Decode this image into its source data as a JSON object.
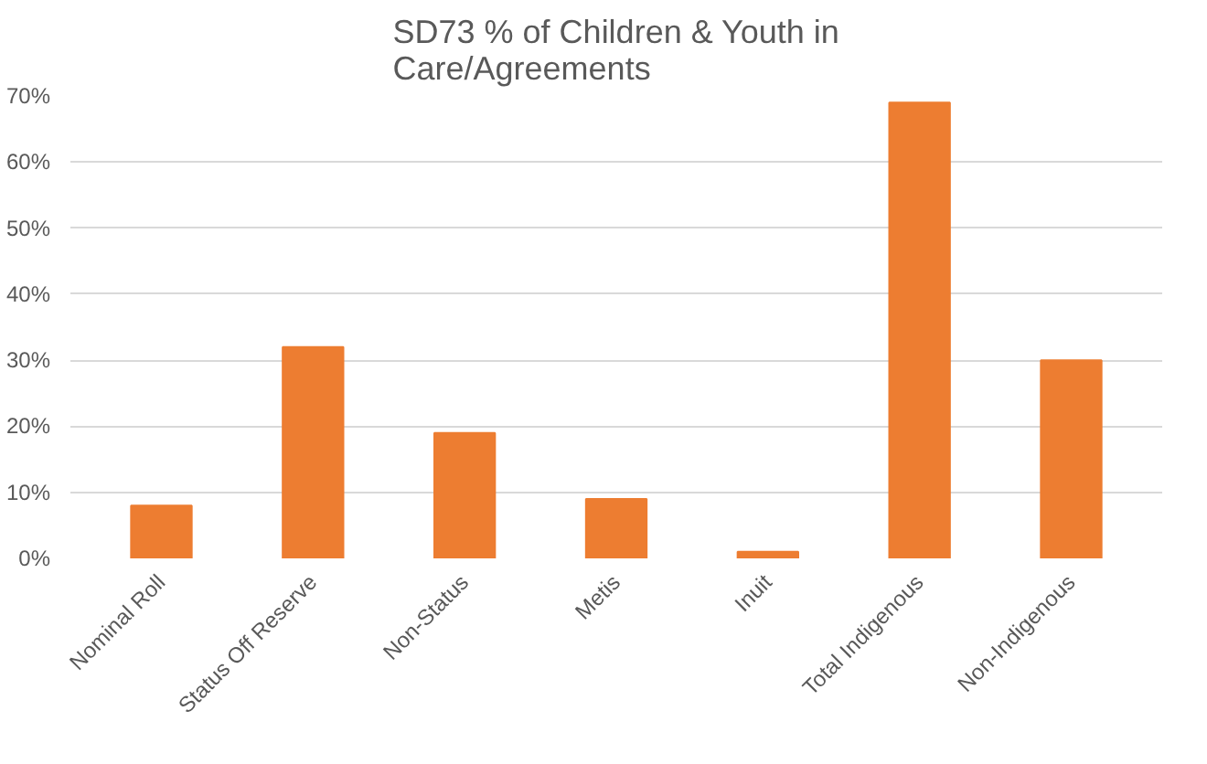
{
  "chart_data": {
    "type": "bar",
    "title": "SD73 % of Children & Youth in Care/Agreements",
    "categories": [
      "Nominal Roll",
      "Status Off Reserve",
      "Non-Status",
      "Metis",
      "Inuit",
      "Total Indigenous",
      "Non-Indigenous"
    ],
    "values": [
      8,
      32,
      19,
      9,
      1,
      69,
      30
    ],
    "color": "#ed7d31",
    "ylim": [
      0,
      70
    ],
    "yticks": [
      {
        "value": 0,
        "label": "0%"
      },
      {
        "value": 10,
        "label": "10%"
      },
      {
        "value": 20,
        "label": "20%"
      },
      {
        "value": 30,
        "label": "30%"
      },
      {
        "value": 40,
        "label": "40%"
      },
      {
        "value": 50,
        "label": "50%"
      },
      {
        "value": 60,
        "label": "60%"
      },
      {
        "value": 70,
        "label": "70%"
      }
    ],
    "grid": "y"
  }
}
